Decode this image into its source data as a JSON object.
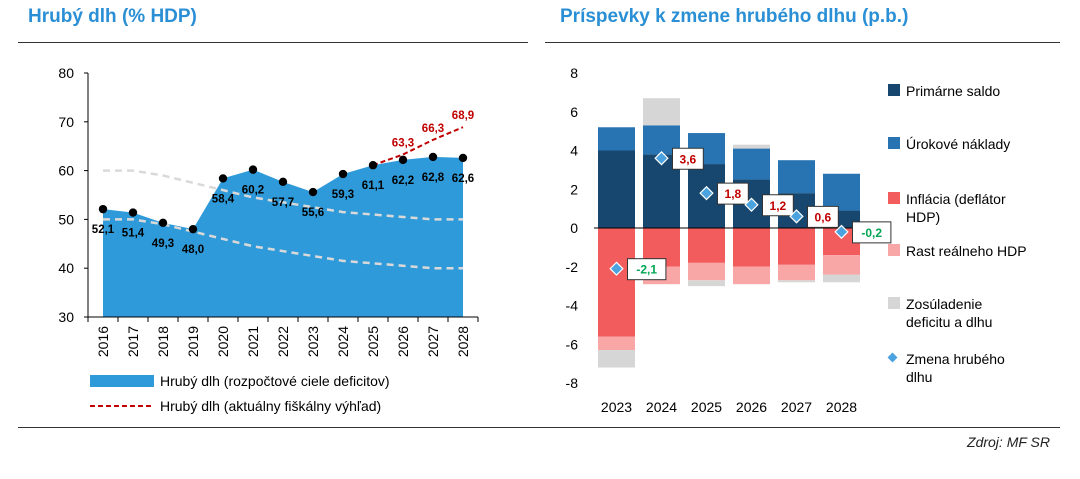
{
  "titles": {
    "left": "Hrubý dlh (% HDP)",
    "right": "Príspevky k zmene hrubého dlhu (p.b.)"
  },
  "source": "Zdroj: MF SR",
  "colors": {
    "title": "#2a8fd4",
    "area": "#2e9ad9",
    "dashed_red": "#c00000",
    "target_lines": "#d9d9d9",
    "primary": "#17476e",
    "interest": "#2874b2",
    "inflation": "#f25c5c",
    "real_gdp": "#f9a6a6",
    "sfa": "#d6d6d6",
    "change_marker": "#4aa3df",
    "neg_label": "#00a651",
    "pos_label": "#c00000"
  },
  "chart_data": [
    {
      "type": "area",
      "title": "Hrubý dlh (% HDP)",
      "categories": [
        "2016",
        "2017",
        "2018",
        "2019",
        "2020",
        "2021",
        "2022",
        "2023",
        "2024",
        "2025",
        "2026",
        "2027",
        "2028"
      ],
      "ylim": [
        30,
        80
      ],
      "yticks": [
        "30",
        "40",
        "50",
        "60",
        "70",
        "80"
      ],
      "series": [
        {
          "name": "Hrubý dlh (rozpočtové ciele deficitov)",
          "values": [
            52.1,
            51.4,
            49.3,
            48.0,
            58.4,
            60.2,
            57.7,
            55.6,
            59.3,
            61.1,
            62.2,
            62.8,
            62.6
          ],
          "labels": [
            "52,1",
            "51,4",
            "49,3",
            "48,0",
            "58,4",
            "60,2",
            "57,7",
            "55,6",
            "59,3",
            "61,1",
            "62,2",
            "62,8",
            "62,6"
          ]
        },
        {
          "name": "Hrubý dlh (aktuálny fiškálny výhľad)",
          "x": [
            "2025",
            "2026",
            "2027",
            "2028"
          ],
          "values": [
            61.1,
            63.3,
            66.3,
            68.9
          ],
          "labels": [
            "63,3",
            "66,3",
            "68,9"
          ]
        }
      ],
      "thresholds": [
        {
          "name": "upper",
          "values": [
            60.0,
            60.0,
            59.0,
            57.5,
            56.0,
            54.5,
            53.5,
            52.5,
            51.5,
            51.0,
            50.5,
            50.0,
            50.0
          ]
        },
        {
          "name": "lower",
          "values": [
            50.0,
            50.0,
            49.0,
            47.5,
            46.0,
            44.5,
            43.5,
            42.5,
            41.5,
            41.0,
            40.5,
            40.0,
            40.0
          ]
        }
      ]
    },
    {
      "type": "bar",
      "stacked": true,
      "title": "Príspevky k zmene hrubého dlhu (p.b.)",
      "categories": [
        "2023",
        "2024",
        "2025",
        "2026",
        "2027",
        "2028"
      ],
      "ylim": [
        -8,
        8
      ],
      "yticks": [
        "-8",
        "-6",
        "-4",
        "-2",
        "0",
        "2",
        "4",
        "6",
        "8"
      ],
      "series": [
        {
          "name": "Primárne saldo",
          "values": [
            4.0,
            3.8,
            3.3,
            2.5,
            1.8,
            0.9
          ]
        },
        {
          "name": "Úrokové náklady",
          "values": [
            1.2,
            1.5,
            1.6,
            1.6,
            1.7,
            1.9
          ]
        },
        {
          "name": "Inflácia (deflátor HDP)",
          "values": [
            -5.6,
            -2.0,
            -1.8,
            -2.0,
            -1.9,
            -1.4
          ]
        },
        {
          "name": "Rast reálneho HDP",
          "values": [
            -0.7,
            -0.9,
            -0.9,
            -0.9,
            -0.8,
            -1.0
          ]
        },
        {
          "name": "Zosúladenie deficitu a dlhu",
          "values": [
            -0.9,
            1.4,
            -0.3,
            0.2,
            -0.1,
            -0.4
          ]
        },
        {
          "name": "Zmena hrubého dlhu",
          "type": "marker",
          "values": [
            -2.1,
            3.6,
            1.8,
            1.2,
            0.6,
            -0.2
          ],
          "labels": [
            "-2,1",
            "3,6",
            "1,8",
            "1,2",
            "0,6",
            "-0,2"
          ]
        }
      ],
      "legend": [
        {
          "lines": [
            "Primárne saldo"
          ]
        },
        {
          "lines": [
            "Úrokové náklady"
          ]
        },
        {
          "lines": [
            "Inflácia (deflátor",
            "HDP)"
          ]
        },
        {
          "lines": [
            "Rast reálneho HDP"
          ]
        },
        {
          "lines": [
            "Zosúladenie",
            "deficitu a dlhu"
          ]
        },
        {
          "lines": [
            "Zmena hrubého",
            "dlhu"
          ]
        }
      ]
    }
  ]
}
